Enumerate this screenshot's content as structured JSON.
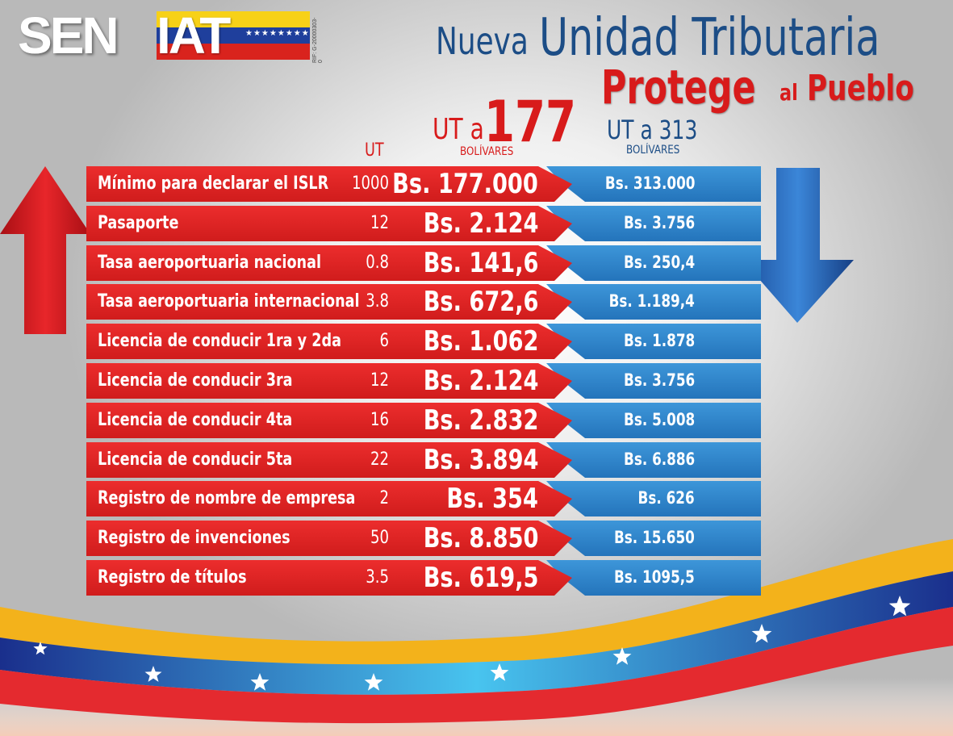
{
  "logo": {
    "sen": "SEN",
    "iat": "IAT",
    "rif": "RIF: G-20000303-0"
  },
  "headline": {
    "nueva": "Nueva",
    "unidad": "Unidad Tributaria",
    "protege": "Protege",
    "al": "al",
    "pueblo": "Pueblo"
  },
  "columns": {
    "ut": "UT",
    "uta177_prefix": "UT a",
    "uta177_value": "177",
    "bolivares1": "BOLÍVARES",
    "uta313": "UT a 313",
    "bolivares2": "BOLÍVARES"
  },
  "rows": [
    {
      "label": "Mínimo para declarar el ISLR",
      "ut": "1000",
      "bs177": "Bs. 177.000",
      "bs313": "Bs. 313.000"
    },
    {
      "label": "Pasaporte",
      "ut": "12",
      "bs177": "Bs. 2.124",
      "bs313": "Bs. 3.756"
    },
    {
      "label": "Tasa aeroportuaria nacional",
      "ut": "0.8",
      "bs177": "Bs. 141,6",
      "bs313": "Bs. 250,4"
    },
    {
      "label": "Tasa aeroportuaria internacional",
      "ut": "3.8",
      "bs177": "Bs. 672,6",
      "bs313": "Bs. 1.189,4"
    },
    {
      "label": "Licencia de conducir 1ra y 2da",
      "ut": "6",
      "bs177": "Bs. 1.062",
      "bs313": "Bs. 1.878"
    },
    {
      "label": "Licencia de conducir 3ra",
      "ut": "12",
      "bs177": "Bs. 2.124",
      "bs313": "Bs. 3.756"
    },
    {
      "label": "Licencia de conducir 4ta",
      "ut": "16",
      "bs177": "Bs. 2.832",
      "bs313": "Bs. 5.008"
    },
    {
      "label": "Licencia de conducir 5ta",
      "ut": "22",
      "bs177": "Bs. 3.894",
      "bs313": "Bs. 6.886"
    },
    {
      "label": "Registro de nombre de empresa",
      "ut": "2",
      "bs177": "Bs. 354",
      "bs313": "Bs. 626"
    },
    {
      "label": "Registro de invenciones",
      "ut": "50",
      "bs177": "Bs. 8.850",
      "bs313": "Bs. 15.650"
    },
    {
      "label": "Registro de títulos",
      "ut": "3.5",
      "bs177": "Bs. 619,5",
      "bs313": "Bs. 1095,5"
    }
  ],
  "decor": {
    "up_arrow_icon": "up-arrow-icon",
    "down_arrow_icon": "down-arrow-icon",
    "star_icon": "star-icon",
    "colors": {
      "red": "#d81b1b",
      "blue": "#1c4d86",
      "yellow": "#f7b81a",
      "ribbon_blue": "#1f3f9c",
      "ribbon_red": "#e02a2a"
    }
  }
}
